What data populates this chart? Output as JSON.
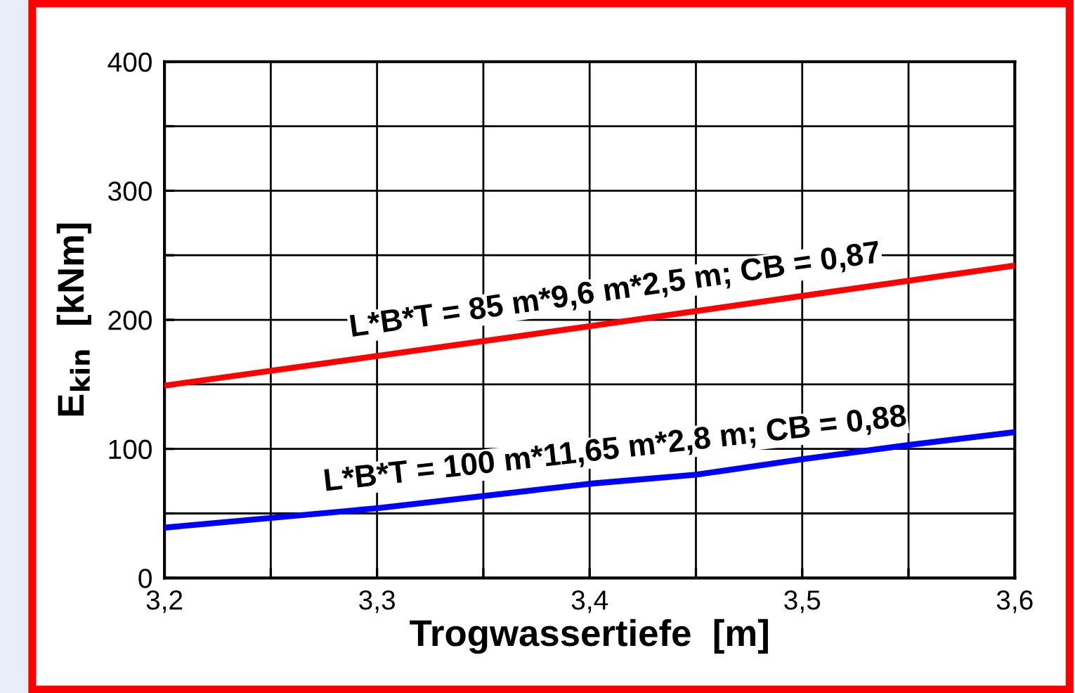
{
  "chart_data": {
    "type": "line",
    "xlabel": "Trogwassertiefe  [m]",
    "ylabel": "E$_{kin}$  [kNm]",
    "series": [
      {
        "color": "#ff0000",
        "x": [
          3.2,
          3.4,
          3.6
        ],
        "values": [
          149,
          195,
          242
        ]
      },
      {
        "color": "#0000ff",
        "x": [
          3.2,
          3.3,
          3.4,
          3.45,
          3.5,
          3.55,
          3.6
        ],
        "values": [
          39,
          54,
          73,
          80,
          92,
          103,
          113
        ]
      }
    ],
    "annotations": [
      "L*B*T = 85 m*9,6 m*2,5 m; CB = 0,87",
      "L*B*T = 100 m*11,65 m*2,8 m; CB = 0,88"
    ],
    "xlim": [
      3.2,
      3.6
    ],
    "ylim": [
      0,
      400
    ],
    "xticks": [
      {
        "value": 3.2,
        "label": "3,2"
      },
      {
        "value": 3.25,
        "label": null
      },
      {
        "value": 3.3,
        "label": "3,3"
      },
      {
        "value": 3.35,
        "label": null
      },
      {
        "value": 3.4,
        "label": "3,4"
      },
      {
        "value": 3.45,
        "label": null
      },
      {
        "value": 3.5,
        "label": "3,5"
      },
      {
        "value": 3.55,
        "label": null
      },
      {
        "value": 3.6,
        "label": "3,6"
      }
    ],
    "yticks": [
      0,
      {
        "value": 50,
        "label": null
      },
      100,
      {
        "value": 150,
        "label": null
      },
      200,
      {
        "value": 250,
        "label": null
      },
      300,
      {
        "value": 350,
        "label": null
      },
      400
    ],
    "grid": true,
    "legend": false,
    "marker": "none",
    "line_style": "solid"
  }
}
